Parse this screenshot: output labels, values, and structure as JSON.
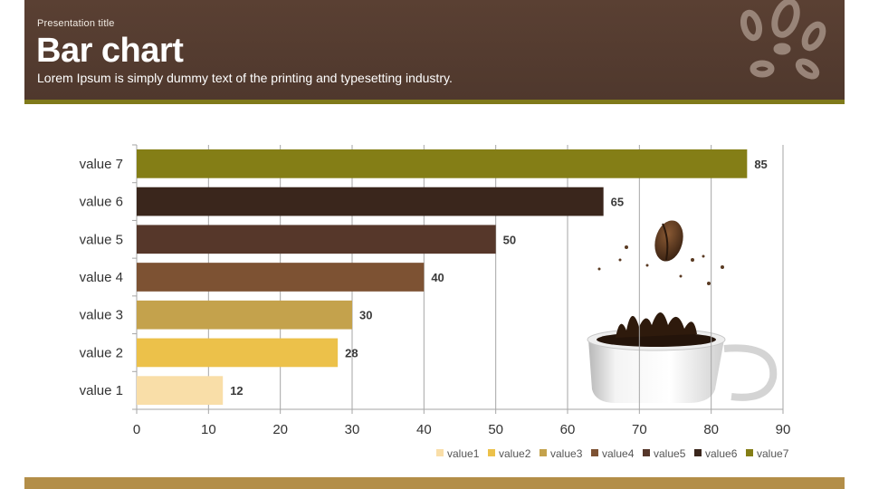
{
  "header": {
    "presentation_title": "Presentation title",
    "title": "Bar chart",
    "subtitle": "Lorem Ipsum is simply dummy text of the printing and typesetting industry."
  },
  "colors": {
    "header_bg": "#52392e",
    "header_stripe": "#7f7a1a",
    "footer": "#b38e48"
  },
  "chart_data": {
    "type": "bar",
    "orientation": "horizontal",
    "categories": [
      "value 1",
      "value 2",
      "value 3",
      "value 4",
      "value 5",
      "value 6",
      "value 7"
    ],
    "values": [
      12,
      28,
      30,
      40,
      50,
      65,
      85
    ],
    "colors": [
      "#f9dea8",
      "#ecc14a",
      "#c4a24c",
      "#7d5233",
      "#56372a",
      "#3a261c",
      "#847e16"
    ],
    "legend": [
      "value1",
      "value2",
      "value3",
      "value4",
      "value5",
      "value6",
      "value7"
    ],
    "legend_position": "bottom",
    "xlim": [
      0,
      90
    ],
    "xticks": [
      0,
      10,
      20,
      30,
      40,
      50,
      60,
      70,
      80,
      90
    ],
    "grid": true,
    "data_labels": true
  }
}
